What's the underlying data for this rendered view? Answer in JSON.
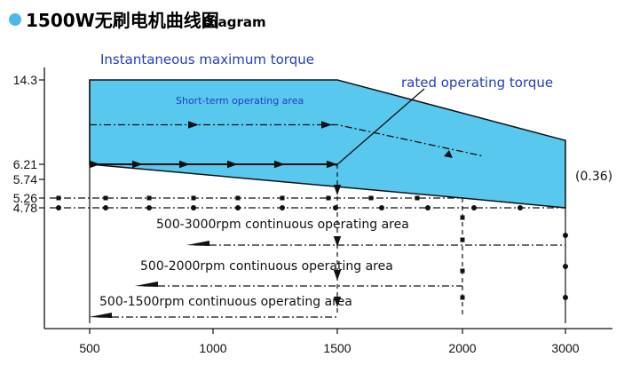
{
  "chart_data": {
    "type": "area",
    "title": "1500W无刷电机曲线图",
    "subtitle": "Diagram",
    "title_bullet_color": "#4bb8e8",
    "fill_color": "#58c8ee",
    "x_ticks": [
      500,
      1000,
      1500,
      2000,
      3000
    ],
    "y_ticks": [
      14.3,
      6.21,
      5.74,
      5.26,
      4.78
    ],
    "xlim": [
      380,
      3200
    ],
    "ylim": [
      2.0,
      15.5
    ],
    "max_torque_curve": {
      "x": [
        500,
        1500,
        3000,
        3000,
        2000,
        500
      ],
      "y": [
        14.3,
        14.3,
        8.5,
        4.78,
        5.26,
        6.21
      ]
    },
    "short_term_line": {
      "x": [
        500,
        1500,
        2200
      ],
      "y": [
        10.0,
        10.0,
        7.0
      ]
    },
    "rated_line": {
      "x": [
        500,
        1500
      ],
      "y": [
        6.21,
        6.21
      ]
    },
    "continuous_levels": [
      {
        "y": 5.26,
        "x_end": 2000
      },
      {
        "y": 4.78,
        "x_end": 3000
      }
    ],
    "continuous_areas": [
      {
        "label": "500-3000rpm continuous operating area",
        "x_end": 3000
      },
      {
        "label": "500-2000rpm continuous operating area",
        "x_end": 2000
      },
      {
        "label": "500-1500rpm continuous operating area",
        "x_end": 1500
      }
    ],
    "annotations": {
      "instantaneous": "Instantaneous maximum torque",
      "short_term": "Short-term operating area",
      "rated": "rated operating torque",
      "end_value": "(0.36)"
    }
  }
}
